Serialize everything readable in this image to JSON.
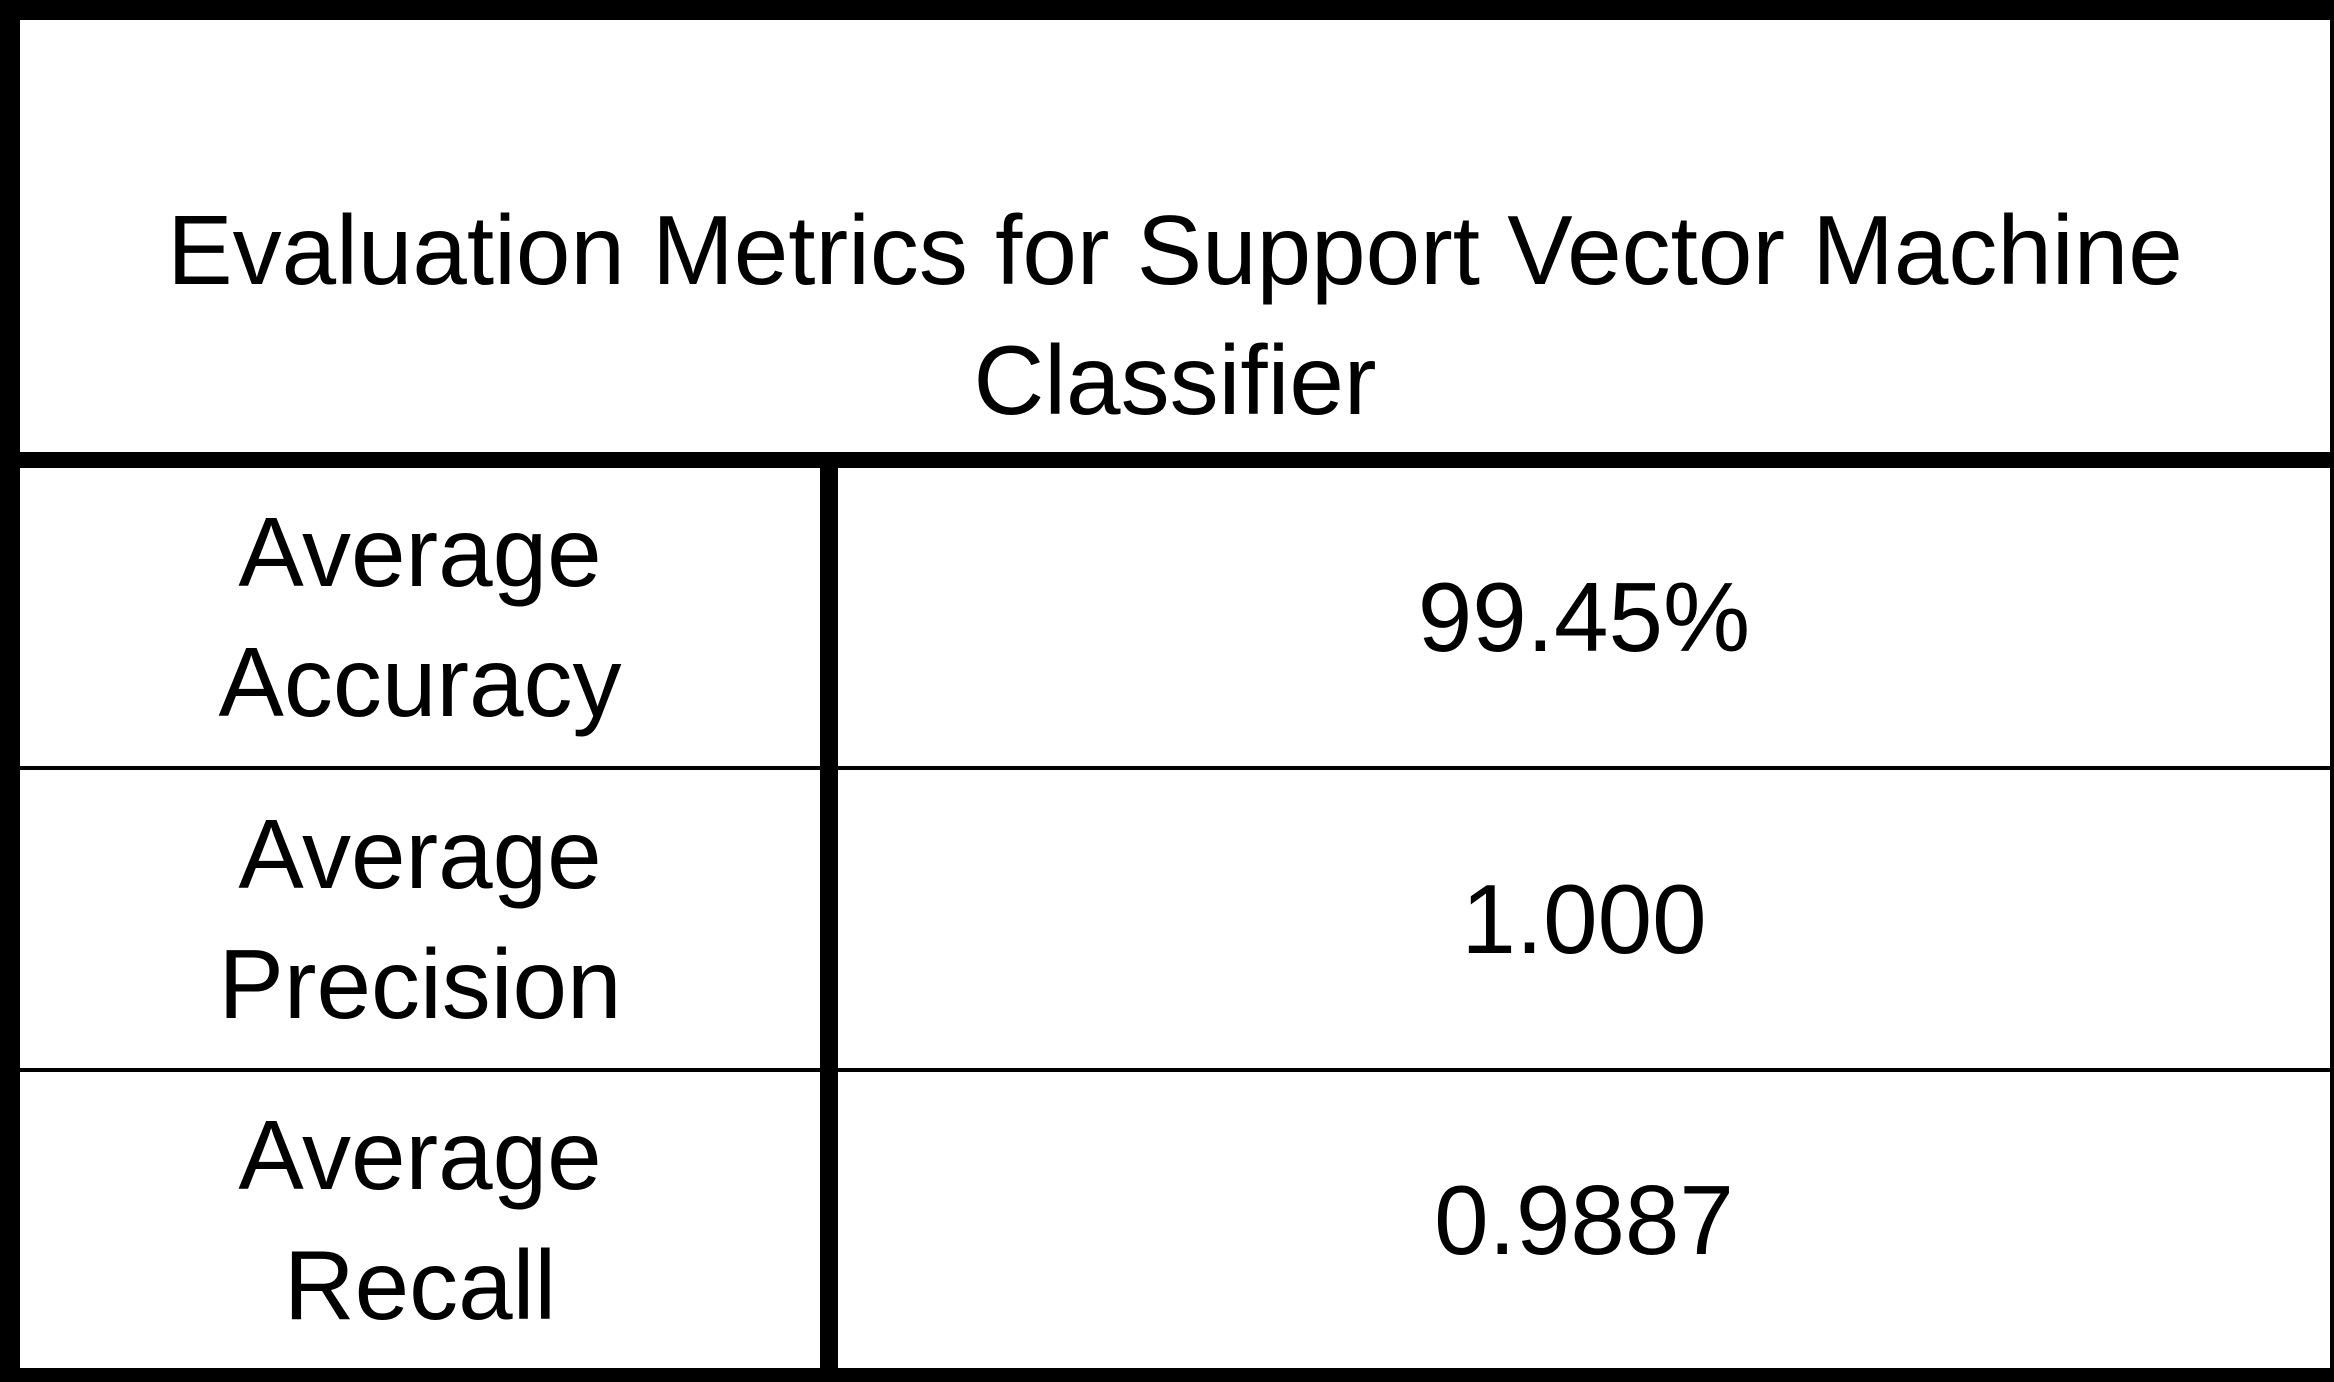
{
  "table": {
    "title": "Evaluation Metrics for Support Vector Machine\nClassifier",
    "rows": [
      {
        "metric": "Average\nAccuracy",
        "value": "99.45%"
      },
      {
        "metric": "Average\nPrecision",
        "value": "1.000"
      },
      {
        "metric": "Average\nRecall",
        "value": "0.9887"
      }
    ],
    "colors": {
      "border": "#000000",
      "background": "#ffffff",
      "text": "#000000"
    }
  }
}
